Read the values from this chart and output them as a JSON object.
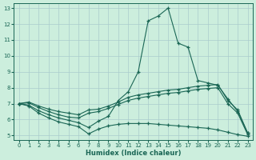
{
  "xlabel": "Humidex (Indice chaleur)",
  "bg_color": "#cceedd",
  "line_color": "#1a6655",
  "grid_color": "#aacccc",
  "xlim": [
    -0.5,
    23.5
  ],
  "ylim": [
    4.7,
    13.3
  ],
  "xticks": [
    0,
    1,
    2,
    3,
    4,
    5,
    6,
    7,
    8,
    9,
    10,
    11,
    12,
    13,
    14,
    15,
    16,
    17,
    18,
    19,
    20,
    21,
    22,
    23
  ],
  "yticks": [
    5,
    6,
    7,
    8,
    9,
    10,
    11,
    12,
    13
  ],
  "lines": [
    [
      7.0,
      7.1,
      6.85,
      6.65,
      6.5,
      6.4,
      6.3,
      6.6,
      6.65,
      6.85,
      7.1,
      7.4,
      7.55,
      7.65,
      7.75,
      7.85,
      7.9,
      8.0,
      8.1,
      8.15,
      8.2,
      7.2,
      6.6,
      5.15
    ],
    [
      7.0,
      7.05,
      6.75,
      6.5,
      6.3,
      6.15,
      6.1,
      6.4,
      6.5,
      6.7,
      6.95,
      7.2,
      7.35,
      7.45,
      7.55,
      7.65,
      7.7,
      7.8,
      7.9,
      7.95,
      8.0,
      7.0,
      6.4,
      5.05
    ],
    [
      7.0,
      6.9,
      6.55,
      6.3,
      6.1,
      5.95,
      5.8,
      5.5,
      5.9,
      6.2,
      7.2,
      7.75,
      9.0,
      12.2,
      12.5,
      13.0,
      10.8,
      10.55,
      8.45,
      8.3,
      8.15,
      7.3,
      6.5,
      5.15
    ],
    [
      7.0,
      6.85,
      6.4,
      6.1,
      5.85,
      5.7,
      5.55,
      5.1,
      5.4,
      5.6,
      5.7,
      5.75,
      5.75,
      5.75,
      5.7,
      5.65,
      5.6,
      5.55,
      5.5,
      5.45,
      5.35,
      5.2,
      5.05,
      4.95
    ]
  ]
}
